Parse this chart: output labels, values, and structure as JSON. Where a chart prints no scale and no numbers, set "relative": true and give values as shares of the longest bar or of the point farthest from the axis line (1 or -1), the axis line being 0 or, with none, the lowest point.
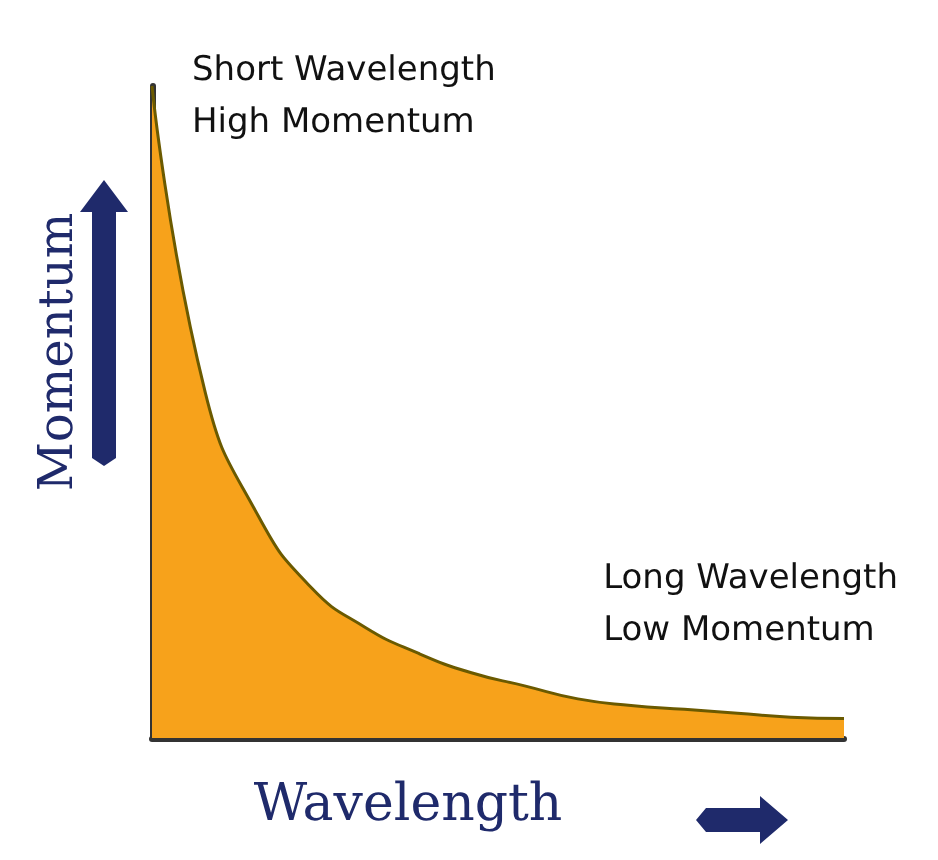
{
  "chart_data": {
    "type": "area",
    "relative": true,
    "xlabel": "Wavelength",
    "ylabel": "Momentum",
    "categories": [
      null,
      null,
      null,
      null,
      null,
      null,
      null,
      null,
      null,
      null,
      null,
      null,
      null,
      null
    ],
    "series": [
      {
        "color": "#f7a21b",
        "values": [
          1.0,
          0.53,
          0.34,
          0.23,
          0.17,
          0.13,
          0.1,
          0.08,
          0.06,
          0.05,
          0.044,
          0.038,
          0.032,
          0.03
        ]
      }
    ],
    "annotations": [
      "Short Wavelength\nHigh Momentum",
      "Long Wavelength\nLow Momentum"
    ],
    "grid": false
  }
}
